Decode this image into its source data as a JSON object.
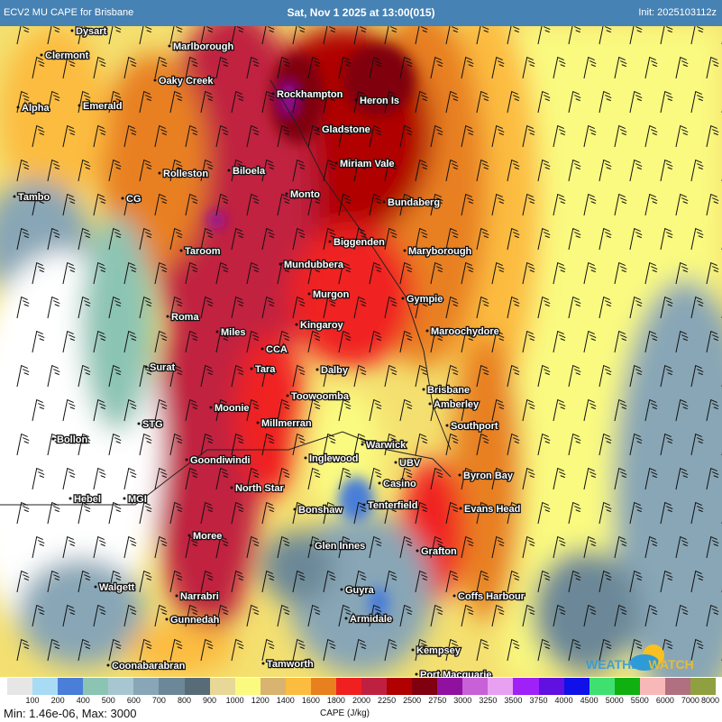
{
  "header": {
    "title": "ECV2 MU CAPE for Brisbane",
    "valid_time": "Sat, Nov 1 2025 at 13:00(015)",
    "init": "Init: 2025103112z",
    "background": "#4682b4"
  },
  "map": {
    "places": [
      "Dysart",
      "Clermont",
      "Marlborough",
      "Oaky Creek",
      "Rockhampton",
      "Heron Is",
      "Alpha",
      "Emerald",
      "Gladstone",
      "Miriam Vale",
      "Rolleston",
      "Biloela",
      "Monto",
      "Tambo",
      "CG",
      "Bundaberg",
      "Biggenden",
      "Taroom",
      "Maryborough",
      "Mundubbera",
      "Murgon",
      "Gympie",
      "Roma",
      "Kingaroy",
      "Miles",
      "Maroochydore",
      "CCA",
      "Surat",
      "Tara",
      "Dalby",
      "Brisbane",
      "Toowoomba",
      "Amberley",
      "Moonie",
      "Millmerran",
      "STG",
      "Southport",
      "Bollon",
      "Warwick",
      "Inglewood",
      "Goondiwindi",
      "UBV",
      "Byron Bay",
      "Casino",
      "North Star",
      "Hebel",
      "MGI",
      "Bonshaw",
      "Tenterfield",
      "Evans Head",
      "Moree",
      "Glen Innes",
      "Grafton",
      "Walgett",
      "Guyra",
      "Narrabri",
      "Coffs Harbour",
      "Armidale",
      "Gunnedah",
      "Kempsey",
      "Coonabarabran",
      "Tamworth",
      "Port Macquarie"
    ],
    "overlay": "wind-barbs",
    "logo": "WEATHERWATCH"
  },
  "legend": {
    "colors": [
      "#e6e6e6",
      "#a8dcf4",
      "#4a7ed8",
      "#8cc4b4",
      "#a8c6d0",
      "#88a6b6",
      "#6c8898",
      "#586c78",
      "#e8d898",
      "#fafa80",
      "#d8b470",
      "#fcbc40",
      "#e88020",
      "#f02020",
      "#c02040",
      "#b00000",
      "#800010",
      "#9010a0",
      "#c860d8",
      "#e8a0f0",
      "#a020f8",
      "#6010e0",
      "#1010e8",
      "#40e070",
      "#10b010",
      "#f8b8b8",
      "#b07080",
      "#90a040"
    ],
    "labels": [
      "100",
      "200",
      "400",
      "500",
      "600",
      "700",
      "800",
      "900",
      "1000",
      "1200",
      "1400",
      "1600",
      "1800",
      "2000",
      "2250",
      "2500",
      "2750",
      "3000",
      "3250",
      "3500",
      "3750",
      "4000",
      "4500",
      "5000",
      "5500",
      "6000",
      "7000",
      "8000"
    ],
    "minmax": "Min: 1.46e-06, Max: 3000",
    "units": "CAPE (J/kg)"
  }
}
